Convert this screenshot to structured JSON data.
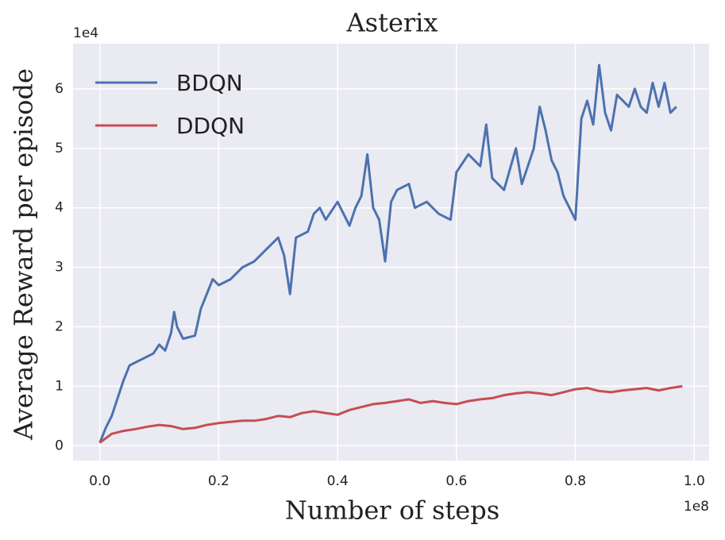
{
  "chart_data": {
    "type": "line",
    "title": "Asterix",
    "xlabel": "Number of steps",
    "ylabel": "Average Reward per episode",
    "x_offset_label": "1e8",
    "y_offset_label": "1e4",
    "xlim": [
      -0.045,
      1.025
    ],
    "ylim": [
      -0.25,
      6.76
    ],
    "xticks": [
      {
        "value": 0,
        "label": "0.0"
      },
      {
        "value": 0.2,
        "label": "0.2"
      },
      {
        "value": 0.4,
        "label": "0.4"
      },
      {
        "value": 0.6,
        "label": "0.6"
      },
      {
        "value": 0.8,
        "label": "0.8"
      },
      {
        "value": 1,
        "label": "1.0"
      }
    ],
    "yticks": [
      0,
      1,
      2,
      3,
      4,
      5,
      6
    ],
    "grid": true,
    "legend": "upper left",
    "series": [
      {
        "name": "BDQN",
        "color": "#4c72b0",
        "x": [
          0,
          0.01,
          0.02,
          0.03,
          0.04,
          0.05,
          0.06,
          0.07,
          0.08,
          0.09,
          0.1,
          0.11,
          0.12,
          0.125,
          0.13,
          0.14,
          0.16,
          0.17,
          0.19,
          0.2,
          0.22,
          0.24,
          0.26,
          0.28,
          0.3,
          0.31,
          0.32,
          0.33,
          0.35,
          0.36,
          0.37,
          0.38,
          0.4,
          0.42,
          0.43,
          0.44,
          0.45,
          0.46,
          0.47,
          0.48,
          0.49,
          0.5,
          0.52,
          0.53,
          0.55,
          0.57,
          0.59,
          0.6,
          0.62,
          0.64,
          0.65,
          0.66,
          0.68,
          0.7,
          0.71,
          0.73,
          0.74,
          0.75,
          0.76,
          0.77,
          0.78,
          0.8,
          0.81,
          0.82,
          0.83,
          0.84,
          0.85,
          0.86,
          0.87,
          0.89,
          0.9,
          0.91,
          0.92,
          0.93,
          0.94,
          0.95,
          0.96,
          0.97
        ],
        "values": [
          0.05,
          0.3,
          0.5,
          0.8,
          1.1,
          1.35,
          1.4,
          1.45,
          1.5,
          1.55,
          1.7,
          1.6,
          1.9,
          2.25,
          2.0,
          1.8,
          1.85,
          2.3,
          2.8,
          2.7,
          2.8,
          3.0,
          3.1,
          3.3,
          3.5,
          3.2,
          2.55,
          3.5,
          3.6,
          3.9,
          4.0,
          3.8,
          4.1,
          3.7,
          4.0,
          4.2,
          4.9,
          4.0,
          3.8,
          3.1,
          4.1,
          4.3,
          4.4,
          4.0,
          4.1,
          3.9,
          3.8,
          4.6,
          4.9,
          4.7,
          5.4,
          4.5,
          4.3,
          5.0,
          4.4,
          5.0,
          5.7,
          5.3,
          4.8,
          4.6,
          4.2,
          3.8,
          5.5,
          5.8,
          5.4,
          6.4,
          5.6,
          5.3,
          5.9,
          5.7,
          6.0,
          5.7,
          5.6,
          6.1,
          5.7,
          6.1,
          5.6,
          5.7
        ]
      },
      {
        "name": "DDQN",
        "color": "#c44e52",
        "x": [
          0,
          0.02,
          0.04,
          0.06,
          0.08,
          0.1,
          0.12,
          0.14,
          0.16,
          0.18,
          0.2,
          0.22,
          0.24,
          0.26,
          0.28,
          0.3,
          0.32,
          0.34,
          0.36,
          0.38,
          0.4,
          0.42,
          0.44,
          0.46,
          0.48,
          0.5,
          0.52,
          0.54,
          0.56,
          0.58,
          0.6,
          0.62,
          0.64,
          0.66,
          0.68,
          0.7,
          0.72,
          0.74,
          0.76,
          0.78,
          0.8,
          0.82,
          0.84,
          0.86,
          0.88,
          0.9,
          0.92,
          0.94,
          0.96,
          0.98
        ],
        "values": [
          0.05,
          0.2,
          0.25,
          0.28,
          0.32,
          0.35,
          0.33,
          0.28,
          0.3,
          0.35,
          0.38,
          0.4,
          0.42,
          0.42,
          0.45,
          0.5,
          0.48,
          0.55,
          0.58,
          0.55,
          0.52,
          0.6,
          0.65,
          0.7,
          0.72,
          0.75,
          0.78,
          0.72,
          0.75,
          0.72,
          0.7,
          0.75,
          0.78,
          0.8,
          0.85,
          0.88,
          0.9,
          0.88,
          0.85,
          0.9,
          0.95,
          0.97,
          0.92,
          0.9,
          0.93,
          0.95,
          0.97,
          0.93,
          0.97,
          1.0
        ]
      }
    ]
  }
}
